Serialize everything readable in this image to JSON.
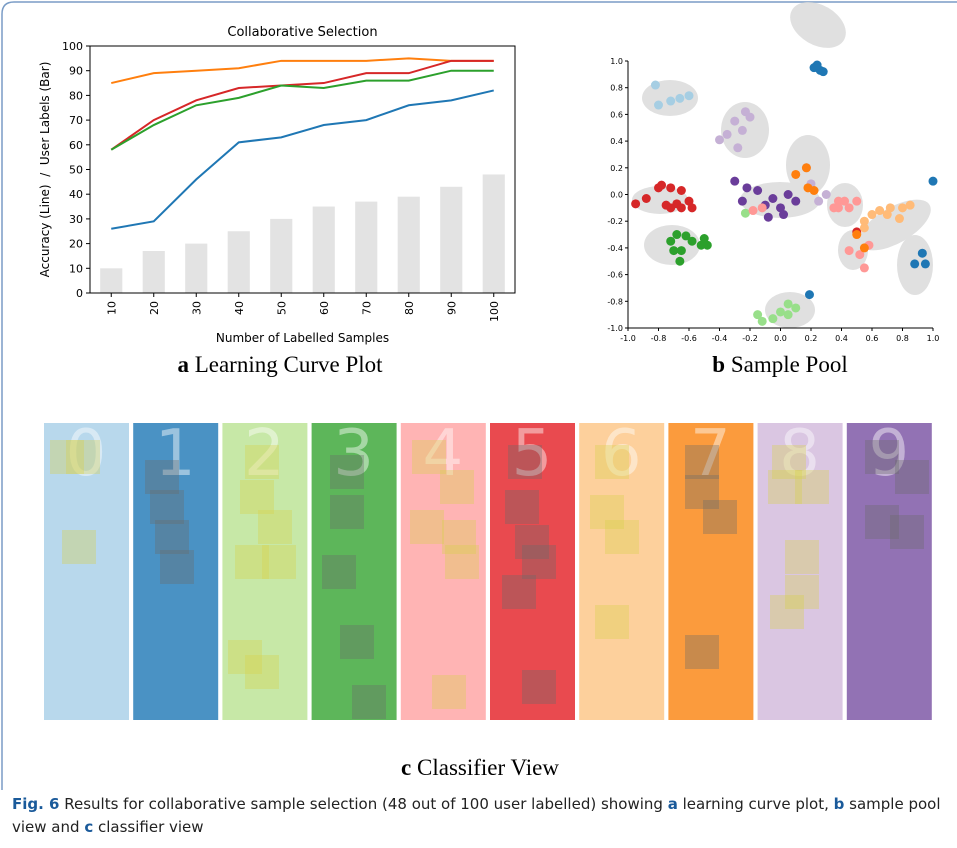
{
  "chart_data": [
    {
      "type": "bar_line",
      "title": "Collaborative Selection",
      "xlabel": "Number of Labelled Samples",
      "ylabel": "Accuracy (Line)  /  User Labels (Bar)",
      "categories": [
        "10",
        "20",
        "30",
        "40",
        "50",
        "60",
        "70",
        "80",
        "90",
        "100"
      ],
      "bars": {
        "color": "#e3e3e3",
        "values": [
          10,
          17,
          20,
          25,
          30,
          35,
          37,
          39,
          43,
          48
        ]
      },
      "series": [
        {
          "color": "#1f77b4",
          "values": [
            26,
            29,
            46,
            61,
            63,
            68,
            70,
            76,
            78,
            82
          ]
        },
        {
          "color": "#ff7f0e",
          "values": [
            85,
            89,
            90,
            91,
            94,
            94,
            94,
            95,
            94,
            94
          ]
        },
        {
          "color": "#d62728",
          "values": [
            58,
            70,
            78,
            83,
            84,
            85,
            89,
            89,
            94,
            94
          ]
        },
        {
          "color": "#2ca02c",
          "values": [
            58,
            68,
            76,
            79,
            84,
            83,
            86,
            86,
            90,
            90
          ]
        }
      ],
      "ylim": [
        0,
        100
      ],
      "yticks": [
        0,
        10,
        20,
        30,
        40,
        50,
        60,
        70,
        80,
        90,
        100
      ]
    },
    {
      "type": "scatter",
      "xlim": [
        -1,
        1
      ],
      "ylim": [
        -1,
        1
      ],
      "xticks": [
        {
          "value": -1,
          "label": "-1.0"
        },
        -0.8,
        -0.6,
        -0.4,
        -0.2,
        {
          "value": 0,
          "label": "0.0"
        },
        0.2,
        0.4,
        0.6,
        0.8,
        {
          "value": 1,
          "label": "1.0"
        }
      ],
      "yticks": [
        {
          "value": -1,
          "label": "-1.0"
        },
        -0.8,
        -0.6,
        -0.4,
        -0.2,
        {
          "value": 0,
          "label": "0.0"
        },
        0.2,
        0.4,
        0.6,
        0.8,
        {
          "value": 1,
          "label": "1.0"
        }
      ],
      "series": [
        {
          "color": "#a6cee3",
          "x": [
            -0.82,
            -0.66,
            -0.6,
            -0.8,
            -0.72
          ],
          "y": [
            0.82,
            0.72,
            0.74,
            0.67,
            0.7
          ]
        },
        {
          "color": "#1f77b4",
          "x": [
            0.22,
            0.26,
            0.24,
            0.28,
            1.0,
            0.88,
            0.93,
            0.95,
            0.19
          ],
          "y": [
            0.95,
            0.93,
            0.97,
            0.92,
            0.1,
            -0.52,
            -0.44,
            -0.52,
            -0.75
          ]
        },
        {
          "color": "#c5b0d5",
          "x": [
            -0.3,
            -0.23,
            -0.2,
            -0.25,
            -0.35,
            -0.28,
            -0.4,
            0.17,
            0.2,
            0.3,
            0.25
          ],
          "y": [
            0.55,
            0.62,
            0.58,
            0.48,
            0.45,
            0.35,
            0.41,
            0.2,
            0.08,
            0.0,
            -0.05
          ]
        },
        {
          "color": "#6a3d9a",
          "x": [
            -0.3,
            -0.22,
            -0.15,
            -0.25,
            -0.1,
            -0.05,
            0.0,
            0.02,
            -0.08,
            0.1,
            0.05
          ],
          "y": [
            0.1,
            0.05,
            0.03,
            -0.05,
            -0.08,
            -0.03,
            -0.1,
            -0.15,
            -0.17,
            -0.05,
            0.0
          ]
        },
        {
          "color": "#d62728",
          "x": [
            -0.95,
            -0.88,
            -0.8,
            -0.78,
            -0.72,
            -0.65,
            -0.68,
            -0.6,
            -0.58,
            -0.75,
            -0.72,
            -0.65,
            0.5
          ],
          "y": [
            -0.07,
            -0.03,
            0.05,
            0.07,
            0.05,
            0.03,
            -0.07,
            -0.05,
            -0.1,
            -0.08,
            -0.1,
            -0.1,
            -0.28
          ]
        },
        {
          "color": "#2ca02c",
          "x": [
            -0.68,
            -0.62,
            -0.72,
            -0.65,
            -0.58,
            -0.52,
            -0.5,
            -0.48,
            -0.7,
            -0.66
          ],
          "y": [
            -0.3,
            -0.31,
            -0.35,
            -0.42,
            -0.35,
            -0.38,
            -0.33,
            -0.38,
            -0.42,
            -0.5
          ]
        },
        {
          "color": "#98df8a",
          "x": [
            -0.23,
            -0.15,
            -0.12,
            -0.05,
            0.0,
            0.05,
            0.1,
            0.05
          ],
          "y": [
            -0.14,
            -0.9,
            -0.95,
            -0.93,
            -0.88,
            -0.9,
            -0.85,
            -0.82
          ]
        },
        {
          "color": "#ff9896",
          "x": [
            -0.18,
            -0.12,
            0.38,
            0.42,
            0.35,
            0.45,
            0.5,
            0.45,
            0.52,
            0.58,
            0.55,
            0.38
          ],
          "y": [
            -0.12,
            -0.1,
            -0.05,
            -0.05,
            -0.1,
            -0.1,
            -0.05,
            -0.42,
            -0.45,
            -0.38,
            -0.55,
            -0.1
          ]
        },
        {
          "color": "#ff7f0e",
          "x": [
            0.1,
            0.18,
            0.22,
            0.17,
            0.55,
            0.5
          ],
          "y": [
            0.15,
            0.05,
            0.03,
            0.2,
            -0.4,
            -0.3
          ]
        },
        {
          "color": "#ffbb78",
          "x": [
            0.55,
            0.6,
            0.65,
            0.72,
            0.8,
            0.7,
            0.78,
            0.55,
            0.85
          ],
          "y": [
            -0.2,
            -0.15,
            -0.12,
            -0.1,
            -0.1,
            -0.15,
            -0.18,
            -0.25,
            -0.08
          ]
        }
      ]
    }
  ],
  "panels": [
    {
      "letter": "a",
      "label": "Learning Curve Plot"
    },
    {
      "letter": "b",
      "label": "Sample Pool"
    },
    {
      "letter": "c",
      "label": "Classifier View"
    }
  ],
  "classifier_view": {
    "columns": [
      {
        "label": "0",
        "color": "#b8d8ec"
      },
      {
        "label": "1",
        "color": "#4a92c4"
      },
      {
        "label": "2",
        "color": "#c7e8a7"
      },
      {
        "label": "3",
        "color": "#5db65a"
      },
      {
        "label": "4",
        "color": "#ffb4b4"
      },
      {
        "label": "5",
        "color": "#e94a4f"
      },
      {
        "label": "6",
        "color": "#fdd09c"
      },
      {
        "label": "7",
        "color": "#fb9b3d"
      },
      {
        "label": "8",
        "color": "#dac6e2"
      },
      {
        "label": "9",
        "color": "#9272b4"
      }
    ]
  },
  "caption": {
    "figure": "Fig. 6",
    "parts": [
      " Results for collaborative sample selection (48 out of 100 user labelled) showing ",
      "a",
      " learning curve plot, ",
      "b",
      " sample pool view and ",
      "c",
      " classifier view"
    ]
  }
}
